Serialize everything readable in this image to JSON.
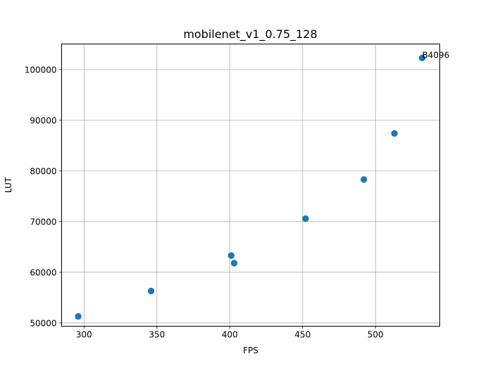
{
  "chart_data": {
    "type": "scatter",
    "title": "mobilenet_v1_0.75_128",
    "xlabel": "FPS",
    "ylabel": "LUT",
    "xlim": [
      284.6,
      544.1
    ],
    "ylim": [
      49350,
      105050
    ],
    "xticks": [
      300,
      350,
      400,
      450,
      500
    ],
    "xtick_labels": [
      "300",
      "350",
      "400",
      "450",
      "500"
    ],
    "yticks": [
      50000,
      60000,
      70000,
      80000,
      90000,
      100000
    ],
    "ytick_labels": [
      "50000",
      "60000",
      "70000",
      "80000",
      "90000",
      "100000"
    ],
    "grid": true,
    "points": [
      {
        "x": 296,
        "y": 51300
      },
      {
        "x": 346,
        "y": 56300
      },
      {
        "x": 401,
        "y": 63300
      },
      {
        "x": 403,
        "y": 61800
      },
      {
        "x": 452,
        "y": 70600
      },
      {
        "x": 492,
        "y": 78300
      },
      {
        "x": 513,
        "y": 87400
      },
      {
        "x": 532,
        "y": 102300
      }
    ],
    "annotations": [
      {
        "text": "B4096",
        "x": 532,
        "y": 102300
      }
    ],
    "colors": {
      "marker": "#1f77b4",
      "grid": "#b0b0b0",
      "axis": "#000000"
    }
  }
}
